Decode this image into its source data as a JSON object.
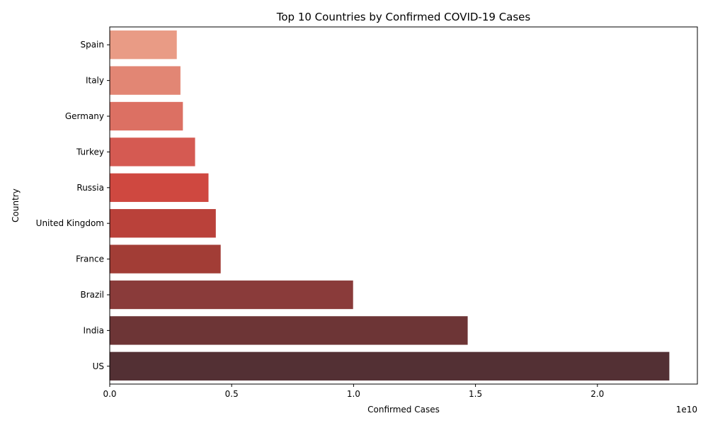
{
  "chart_data": {
    "type": "bar",
    "orientation": "horizontal",
    "title": "Top 10 Countries by Confirmed COVID-19 Cases",
    "xlabel": "Confirmed Cases",
    "ylabel": "Country",
    "x_offset_label": "1e10",
    "xlim": [
      0,
      24100000000.0
    ],
    "x_ticks": [
      0,
      5000000000.0,
      10000000000.0,
      15000000000.0,
      20000000000.0
    ],
    "x_tick_labels": [
      "0.0",
      "0.5",
      "1.0",
      "1.5",
      "2.0"
    ],
    "categories": [
      "Spain",
      "Italy",
      "Germany",
      "Turkey",
      "Russia",
      "United Kingdom",
      "France",
      "Brazil",
      "India",
      "US"
    ],
    "values": [
      2750000000.0,
      2900000000.0,
      3000000000.0,
      3500000000.0,
      4050000000.0,
      4350000000.0,
      4550000000.0,
      9980000000.0,
      14680000000.0,
      22950000000.0
    ],
    "colors": [
      "#e99b85",
      "#e28674",
      "#dc7063",
      "#d55a52",
      "#cf4840",
      "#ba413a",
      "#a23d36",
      "#8a3b3a",
      "#6d3536",
      "#533034"
    ],
    "grid": false,
    "legend": "none"
  }
}
